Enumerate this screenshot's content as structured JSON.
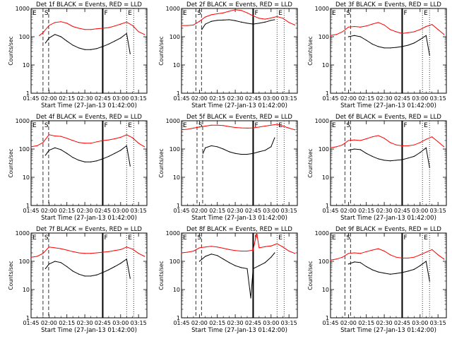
{
  "chart_data": {
    "type": "line",
    "layout": "3x3 grid",
    "shared": {
      "xlabel": "Start Time (27-Jan-13 01:42:00)",
      "ylabel": "Counts/sec",
      "x_ticks": [
        "01:45",
        "02:00",
        "02:15",
        "02:30",
        "02:45",
        "03:00",
        "03:15"
      ],
      "y_ticks": [
        "1",
        "10",
        "100",
        "1000"
      ],
      "y_scale": "log",
      "ylim": [
        1,
        1000
      ],
      "xlim": [
        "01:45",
        "03:22"
      ],
      "series": [
        {
          "label": "Events",
          "color": "#000000"
        },
        {
          "label": "LLD",
          "color": "#ff0000"
        }
      ],
      "markers": [
        "E",
        "S",
        "F",
        "E"
      ]
    },
    "panels": [
      {
        "title": "Det 1f BLACK = Events, RED = LLD",
        "marker_times": {
          "E": "01:45",
          "S": "01:55",
          "F": "02:45",
          "E2": "03:05"
        },
        "series": [
          {
            "label": "Events",
            "color": "#000000",
            "x": [
              "01:57",
              "02:00",
              "02:05",
              "02:10",
              "02:15",
              "02:20",
              "02:25",
              "02:30",
              "02:35",
              "02:40",
              "02:45",
              "02:50",
              "02:55",
              "03:00",
              "03:05",
              "03:08"
            ],
            "y": [
              60,
              90,
              120,
              100,
              70,
              50,
              40,
              35,
              35,
              38,
              45,
              55,
              70,
              90,
              130,
              25
            ]
          },
          {
            "label": "LLD",
            "color": "#ff0000",
            "x": [
              "01:52",
              "01:55",
              "02:00",
              "02:05",
              "02:10",
              "02:15",
              "02:20",
              "02:25",
              "02:30",
              "02:35",
              "02:40",
              "02:45",
              "02:50",
              "02:55",
              "03:00",
              "03:05",
              "03:10",
              "03:15",
              "03:20"
            ],
            "y": [
              110,
              140,
              250,
              320,
              340,
              300,
              230,
              200,
              180,
              180,
              190,
              200,
              210,
              240,
              280,
              330,
              250,
              150,
              120
            ]
          }
        ]
      },
      {
        "title": "Det 2f BLACK = Events, RED = LLD",
        "marker_times": {
          "E": "01:45",
          "S": "01:57",
          "F": "02:45",
          "E2": "03:05"
        },
        "series": [
          {
            "label": "Events",
            "color": "#000000",
            "x": [
              "02:02",
              "02:05",
              "02:10",
              "02:15",
              "02:20",
              "02:25",
              "02:30",
              "02:35",
              "02:40",
              "02:45",
              "02:50",
              "02:55",
              "03:00",
              "03:03"
            ],
            "y": [
              180,
              280,
              350,
              380,
              390,
              400,
              370,
              330,
              300,
              280,
              300,
              330,
              380,
              400
            ]
          },
          {
            "label": "LLD",
            "color": "#ff0000",
            "x": [
              "01:45",
              "01:50",
              "01:55",
              "02:00",
              "02:05",
              "02:10",
              "02:15",
              "02:20",
              "02:25",
              "02:30",
              "02:35",
              "02:40",
              "02:45",
              "02:50",
              "02:55",
              "03:00",
              "03:05",
              "03:10",
              "03:15",
              "03:20"
            ],
            "y": [
              250,
              250,
              260,
              350,
              500,
              600,
              650,
              700,
              800,
              900,
              850,
              700,
              550,
              450,
              420,
              460,
              520,
              450,
              320,
              260
            ]
          }
        ]
      },
      {
        "title": "Det 3f BLACK = Events, RED = LLD",
        "marker_times": {
          "E": "01:45",
          "S": "01:57",
          "F": "02:45",
          "E2": "03:02"
        },
        "series": [
          {
            "label": "Events",
            "color": "#000000",
            "x": [
              "02:00",
              "02:05",
              "02:10",
              "02:15",
              "02:20",
              "02:25",
              "02:30",
              "02:35",
              "02:40",
              "02:45",
              "02:50",
              "02:55",
              "03:00",
              "03:05",
              "03:08"
            ],
            "y": [
              100,
              110,
              100,
              75,
              55,
              45,
              40,
              40,
              42,
              45,
              50,
              60,
              80,
              110,
              22
            ]
          },
          {
            "label": "LLD",
            "color": "#ff0000",
            "x": [
              "01:45",
              "01:50",
              "01:55",
              "02:00",
              "02:05",
              "02:10",
              "02:15",
              "02:20",
              "02:25",
              "02:30",
              "02:35",
              "02:40",
              "02:45",
              "02:50",
              "02:55",
              "03:00",
              "03:05",
              "03:10",
              "03:15",
              "03:20"
            ],
            "y": [
              110,
              120,
              150,
              220,
              230,
              220,
              240,
              280,
              320,
              260,
              180,
              150,
              130,
              140,
              150,
              180,
              230,
              270,
              180,
              120
            ]
          }
        ]
      },
      {
        "title": "Det 4f BLACK = Events, RED = LLD",
        "marker_times": {
          "E": "01:45",
          "S": "01:55",
          "F": "02:45",
          "E2": "03:05"
        },
        "series": [
          {
            "label": "Events",
            "color": "#000000",
            "x": [
              "01:57",
              "02:00",
              "02:05",
              "02:10",
              "02:15",
              "02:20",
              "02:25",
              "02:30",
              "02:35",
              "02:40",
              "02:45",
              "02:50",
              "02:55",
              "03:00",
              "03:05",
              "03:08"
            ],
            "y": [
              60,
              90,
              110,
              95,
              70,
              50,
              40,
              35,
              35,
              38,
              45,
              55,
              70,
              90,
              130,
              25
            ]
          },
          {
            "label": "LLD",
            "color": "#ff0000",
            "x": [
              "01:45",
              "01:50",
              "01:55",
              "02:00",
              "02:05",
              "02:10",
              "02:15",
              "02:20",
              "02:25",
              "02:30",
              "02:35",
              "02:40",
              "02:45",
              "02:50",
              "02:55",
              "03:00",
              "03:05",
              "03:10",
              "03:15",
              "03:20"
            ],
            "y": [
              120,
              130,
              170,
              320,
              290,
              280,
              240,
              200,
              170,
              160,
              160,
              180,
              200,
              210,
              230,
              260,
              320,
              250,
              160,
              120
            ]
          }
        ]
      },
      {
        "title": "Det 5f BLACK = Events, RED = LLD",
        "marker_times": {
          "E": "01:45",
          "S": "01:58",
          "F": "02:45",
          "E2": "03:05"
        },
        "series": [
          {
            "label": "Events",
            "color": "#000000",
            "x": [
              "02:03",
              "02:05",
              "02:10",
              "02:15",
              "02:20",
              "02:25",
              "02:30",
              "02:35",
              "02:40",
              "02:45",
              "02:50",
              "02:55",
              "03:00",
              "03:03"
            ],
            "y": [
              70,
              110,
              130,
              120,
              100,
              80,
              70,
              65,
              65,
              70,
              80,
              90,
              120,
              250
            ]
          },
          {
            "label": "LLD",
            "color": "#ff0000",
            "x": [
              "01:45",
              "01:50",
              "01:55",
              "02:00",
              "02:05",
              "02:10",
              "02:15",
              "02:20",
              "02:25",
              "02:30",
              "02:35",
              "02:40",
              "02:45",
              "02:50",
              "02:55",
              "03:00",
              "03:05",
              "03:10",
              "03:15",
              "03:20"
            ],
            "y": [
              480,
              500,
              550,
              600,
              650,
              700,
              700,
              680,
              620,
              580,
              560,
              550,
              560,
              600,
              650,
              700,
              750,
              650,
              550,
              480
            ]
          }
        ]
      },
      {
        "title": "Det 6f BLACK = Events, RED = LLD",
        "marker_times": {
          "E": "01:45",
          "S": "01:57",
          "F": "02:45",
          "E2": "03:02"
        },
        "series": [
          {
            "label": "Events",
            "color": "#000000",
            "x": [
              "02:00",
              "02:05",
              "02:10",
              "02:15",
              "02:20",
              "02:25",
              "02:30",
              "02:35",
              "02:40",
              "02:45",
              "02:50",
              "02:55",
              "03:00",
              "03:05",
              "03:08"
            ],
            "y": [
              90,
              100,
              95,
              70,
              55,
              45,
              40,
              38,
              40,
              42,
              48,
              55,
              75,
              110,
              22
            ]
          },
          {
            "label": "LLD",
            "color": "#ff0000",
            "x": [
              "01:45",
              "01:50",
              "01:55",
              "02:00",
              "02:05",
              "02:10",
              "02:15",
              "02:20",
              "02:25",
              "02:30",
              "02:35",
              "02:40",
              "02:45",
              "02:50",
              "02:55",
              "03:00",
              "03:05",
              "03:10",
              "03:15",
              "03:20"
            ],
            "y": [
              110,
              120,
              140,
              200,
              210,
              200,
              230,
              270,
              300,
              240,
              170,
              140,
              130,
              130,
              140,
              170,
              220,
              270,
              180,
              120
            ]
          }
        ]
      },
      {
        "title": "Det 7f BLACK = Events, RED = LLD",
        "marker_times": {
          "E": "01:45",
          "S": "01:55",
          "F": "02:45",
          "E2": "03:05"
        },
        "series": [
          {
            "label": "Events",
            "color": "#000000",
            "x": [
              "01:57",
              "02:00",
              "02:05",
              "02:10",
              "02:15",
              "02:20",
              "02:25",
              "02:30",
              "02:35",
              "02:40",
              "02:45",
              "02:50",
              "02:55",
              "03:00",
              "03:05",
              "03:08"
            ],
            "y": [
              55,
              80,
              100,
              90,
              65,
              45,
              35,
              30,
              30,
              33,
              40,
              50,
              65,
              85,
              120,
              25
            ]
          },
          {
            "label": "LLD",
            "color": "#ff0000",
            "x": [
              "01:45",
              "01:50",
              "01:55",
              "02:00",
              "02:05",
              "02:10",
              "02:15",
              "02:20",
              "02:25",
              "02:30",
              "02:35",
              "02:40",
              "02:45",
              "02:50",
              "02:55",
              "03:00",
              "03:05",
              "03:10",
              "03:15",
              "03:20"
            ],
            "y": [
              140,
              150,
              190,
              320,
              300,
              280,
              250,
              220,
              200,
              190,
              190,
              200,
              210,
              220,
              240,
              260,
              320,
              270,
              190,
              150
            ]
          }
        ]
      },
      {
        "title": "Det 8f BLACK = Events, RED = LLD",
        "marker_times": {
          "E": "01:45",
          "S": "01:57",
          "F": "02:45",
          "E2": "03:05"
        },
        "series": [
          {
            "label": "Events",
            "color": "#000000",
            "x": [
              "02:00",
              "02:05",
              "02:10",
              "02:15",
              "02:20",
              "02:25",
              "02:30",
              "02:35",
              "02:40",
              "02:43",
              "02:45",
              "02:50",
              "02:55",
              "03:00",
              "03:03"
            ],
            "y": [
              100,
              150,
              180,
              160,
              120,
              90,
              70,
              60,
              55,
              5,
              55,
              70,
              90,
              140,
              200
            ]
          },
          {
            "label": "LLD",
            "color": "#ff0000",
            "x": [
              "01:45",
              "01:50",
              "01:55",
              "02:00",
              "02:05",
              "02:10",
              "02:15",
              "02:20",
              "02:25",
              "02:30",
              "02:35",
              "02:40",
              "02:45",
              "02:48",
              "02:50",
              "02:55",
              "03:00",
              "03:05",
              "03:10",
              "03:15",
              "03:20"
            ],
            "y": [
              200,
              210,
              230,
              300,
              320,
              340,
              320,
              290,
              260,
              240,
              230,
              230,
              250,
              1000,
              300,
              330,
              350,
              420,
              320,
              230,
              190
            ]
          }
        ]
      },
      {
        "title": "Det 9f BLACK = Events, RED = LLD",
        "marker_times": {
          "E": "01:45",
          "S": "01:57",
          "F": "02:45",
          "E2": "03:02"
        },
        "series": [
          {
            "label": "Events",
            "color": "#000000",
            "x": [
              "02:00",
              "02:05",
              "02:10",
              "02:15",
              "02:20",
              "02:25",
              "02:30",
              "02:35",
              "02:40",
              "02:45",
              "02:50",
              "02:55",
              "03:00",
              "03:05",
              "03:08"
            ],
            "y": [
              80,
              95,
              90,
              65,
              50,
              42,
              38,
              35,
              37,
              40,
              45,
              52,
              70,
              100,
              20
            ]
          },
          {
            "label": "LLD",
            "color": "#ff0000",
            "x": [
              "01:45",
              "01:50",
              "01:55",
              "02:00",
              "02:05",
              "02:10",
              "02:15",
              "02:20",
              "02:25",
              "02:30",
              "02:35",
              "02:40",
              "02:45",
              "02:50",
              "02:55",
              "03:00",
              "03:05",
              "03:10",
              "03:15",
              "03:20"
            ],
            "y": [
              110,
              120,
              140,
              190,
              200,
              190,
              220,
              250,
              280,
              230,
              170,
              140,
              130,
              130,
              140,
              170,
              210,
              260,
              170,
              120
            ]
          }
        ]
      }
    ]
  }
}
